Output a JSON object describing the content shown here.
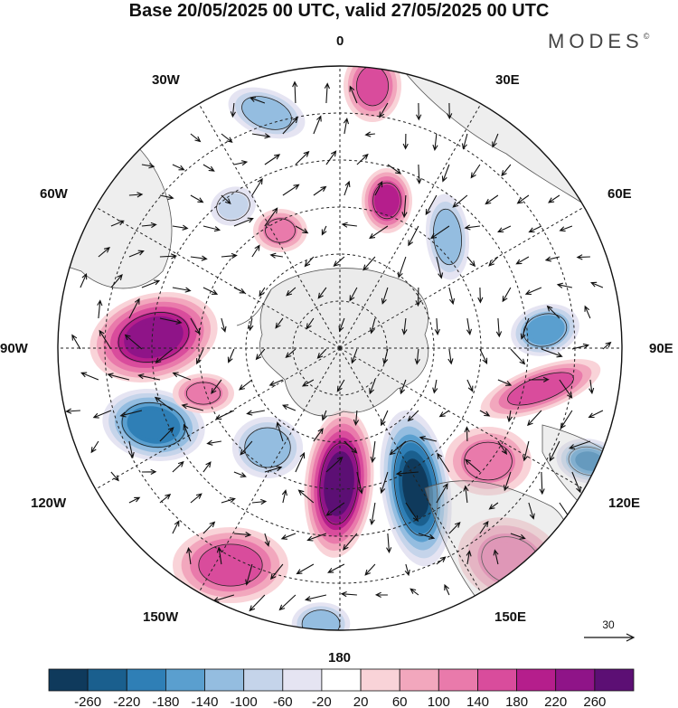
{
  "title": "Base 20/05/2025 00 UTC, valid 27/05/2025 00 UTC",
  "brand": "MODES",
  "brand_mark": "©",
  "longitude_labels": {
    "lon_0": "0",
    "lon_30e": "30E",
    "lon_60e": "60E",
    "lon_90e": "90E",
    "lon_120e": "120E",
    "lon_150e": "150E",
    "lon_180": "180",
    "lon_150w": "150W",
    "lon_120w": "120W",
    "lon_90w": "90W",
    "lon_60w": "60W",
    "lon_30w": "30W"
  },
  "reference_vector": {
    "label": "30"
  },
  "colorbar": {
    "ticks": [
      "-260",
      "-220",
      "-180",
      "-140",
      "-100",
      "-60",
      "-20",
      "20",
      "60",
      "100",
      "140",
      "180",
      "220",
      "260"
    ],
    "colors": [
      "#0f3a5c",
      "#1a5f8e",
      "#2f7fb6",
      "#5a9fcf",
      "#94bde0",
      "#c5d4ea",
      "#e5e4f2",
      "#ffffff",
      "#f9d3d8",
      "#f2a7bd",
      "#e97aab",
      "#d94c9c",
      "#b51e8c",
      "#8f1488",
      "#5c0f74"
    ]
  },
  "anomaly_centers": [
    {
      "id": "cyc-wsa-1",
      "value": -90
    },
    {
      "id": "cyc-atl-1",
      "value": -140
    },
    {
      "id": "anti-atl-1",
      "value": 100
    },
    {
      "id": "anti-0-1",
      "value": 140
    },
    {
      "id": "anti-0-2",
      "value": 180
    },
    {
      "id": "cyc-30e-1",
      "value": -140
    },
    {
      "id": "cyc-ind-1",
      "value": -180
    },
    {
      "id": "anti-90w-1",
      "value": 240
    },
    {
      "id": "cyc-100w-1",
      "value": -220
    },
    {
      "id": "cyc-120w-1",
      "value": -140
    },
    {
      "id": "anti-170w-1",
      "value": 260
    },
    {
      "id": "cyc-165e-1",
      "value": -280
    },
    {
      "id": "cyc-120e-1",
      "value": -200
    },
    {
      "id": "anti-150w-1",
      "value": 160
    },
    {
      "id": "cyc-180-1",
      "value": -140
    },
    {
      "id": "anti-100e-1",
      "value": 140
    },
    {
      "id": "anti-130e-1",
      "value": 120
    },
    {
      "id": "anti-150e-1",
      "value": 100
    },
    {
      "id": "anti-30w-1",
      "value": 100
    }
  ]
}
